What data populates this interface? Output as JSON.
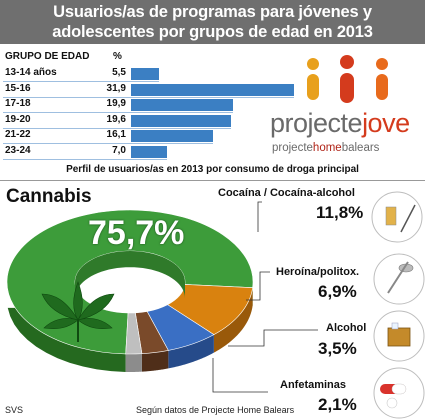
{
  "title_line1": "Usuarios/as de programas para jóvenes y",
  "title_line2": "adolescentes por grupos de edad en 2013",
  "age_header": "GRUPO DE EDAD",
  "pct_header": "%",
  "logo": {
    "word1": "projecte",
    "word2": "jove",
    "sub1": "projecte",
    "sub2": "home",
    "sub3": "balears"
  },
  "colors": {
    "header": "#6f6f6f",
    "bars": "#3b7fc3",
    "cannabis": "#3d9c3a",
    "cocaine": "#d9820f",
    "heroin": "#3a6fc4",
    "alcohol": "#7a4a2a",
    "amphetamines": "#bfbfbf"
  },
  "chart_data": [
    {
      "type": "bar",
      "orientation": "horizontal",
      "title": "Usuarios/as de programas para jóvenes y adolescentes por grupos de edad en 2013",
      "categories": [
        "13-14 años",
        "15-16",
        "17-18",
        "19-20",
        "21-22",
        "23-24"
      ],
      "values": [
        5.5,
        31.9,
        19.9,
        19.6,
        16.1,
        7.0
      ],
      "value_labels": [
        "5,5",
        "31,9",
        "19,9",
        "19,6",
        "16,1",
        "7,0"
      ],
      "xlim": [
        0,
        31.9
      ]
    },
    {
      "type": "pie",
      "style": "donut",
      "title": "Perfil de usuarios/as en 2013 por consumo de droga principal",
      "labels": [
        "Cannabis",
        "Cocaína / Cocaína-alcohol",
        "Heroína/politox.",
        "Alcohol",
        "Anfetaminas"
      ],
      "values": [
        75.7,
        11.8,
        6.9,
        3.5,
        2.1
      ],
      "value_labels": [
        "75,7%",
        "11,8%",
        "6,9%",
        "3,5%",
        "2,1%"
      ]
    }
  ],
  "footer_left": "SVS",
  "footer_source": "Según datos de Projecte  Home Balears"
}
